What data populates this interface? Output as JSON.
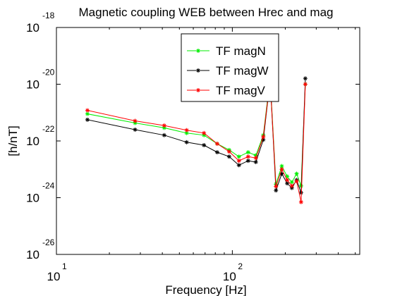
{
  "chart_data": {
    "type": "line",
    "title": "Magnetic coupling WEB between Hrec and mag",
    "xlabel": "Frequency [Hz]",
    "ylabel": "[h/nT]",
    "xscale": "log",
    "yscale": "log",
    "xlim": [
      10,
      530
    ],
    "ylim": [
      1e-26,
      1e-18
    ],
    "x_ticks": [
      {
        "value": 10,
        "base": "10",
        "exp": "1"
      },
      {
        "value": 100,
        "base": "10",
        "exp": "2"
      }
    ],
    "y_ticks": [
      {
        "value": 1e-18,
        "base": "10",
        "exp": "-18"
      },
      {
        "value": 1e-20,
        "base": "10",
        "exp": "-20"
      },
      {
        "value": 1e-22,
        "base": "10",
        "exp": "-22"
      },
      {
        "value": 1e-24,
        "base": "10",
        "exp": "-24"
      },
      {
        "value": 1e-26,
        "base": "10",
        "exp": "-26"
      }
    ],
    "grid": false,
    "legend_position": "top-center",
    "x": [
      15,
      28,
      41,
      55,
      69,
      82,
      96,
      109,
      123,
      136,
      150,
      164,
      177,
      191,
      205,
      218,
      232,
      246,
      260
    ],
    "series": [
      {
        "name": "TF magN",
        "color": "#00ee00",
        "marker": "*",
        "values": [
          9e-22,
          4.3e-22,
          2.9e-22,
          1.9e-22,
          1.6e-22,
          8e-23,
          4.8e-23,
          2.8e-23,
          4e-23,
          3.1e-23,
          1.6e-22,
          1.7e-20,
          3e-24,
          1.3e-23,
          5.6e-24,
          3.5e-24,
          7e-24,
          2.6e-24,
          1e-20
        ]
      },
      {
        "name": "TF magW",
        "color": "#000000",
        "marker": "*",
        "values": [
          5.6e-22,
          2.5e-22,
          1.6e-22,
          9e-23,
          7.1e-23,
          4e-23,
          2.8e-23,
          1.4e-23,
          2e-23,
          1.8e-23,
          1.1e-22,
          1.4e-20,
          1.8e-24,
          7e-24,
          3.2e-24,
          2.2e-24,
          4.2e-24,
          1.5e-24,
          1.6e-20
        ]
      },
      {
        "name": "TF magV",
        "color": "#ff0000",
        "marker": "*",
        "values": [
          1.2e-21,
          5.1e-22,
          3.5e-22,
          2.4e-22,
          1.9e-22,
          8e-23,
          4.2e-23,
          2e-23,
          2.8e-23,
          2.5e-23,
          1.4e-22,
          1.4e-20,
          2.5e-24,
          1e-23,
          4.2e-24,
          2.6e-24,
          3.8e-24,
          7e-25,
          1e-20
        ]
      }
    ]
  }
}
